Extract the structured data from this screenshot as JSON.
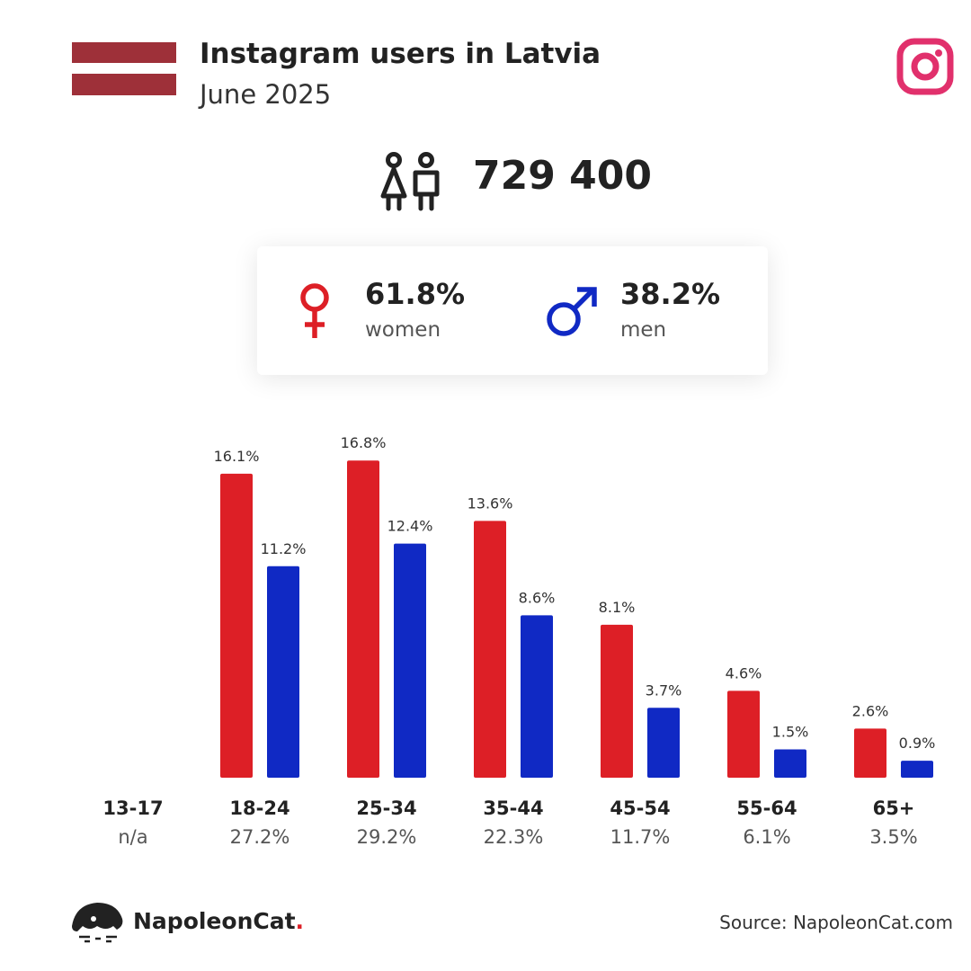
{
  "header": {
    "title": "Instagram users in Latvia",
    "subtitle": "June 2025"
  },
  "colors": {
    "flag_red": "#9e3039",
    "women": "#dd1f26",
    "men": "#1029c4",
    "instagram": "#e1306c"
  },
  "icons": {
    "flag": "latvia-flag-icon",
    "platform": "instagram-icon",
    "users": "users-icon",
    "women": "venus-icon",
    "men": "mars-icon",
    "brand": "napoleoncat-logo-icon"
  },
  "summary": {
    "total_users": "729 400",
    "women_pct": "61.8%",
    "women_label": "women",
    "men_pct": "38.2%",
    "men_label": "men"
  },
  "chart_data": {
    "type": "bar",
    "categories": [
      "13-17",
      "18-24",
      "25-34",
      "35-44",
      "45-54",
      "55-64",
      "65+"
    ],
    "category_totals": [
      "n/a",
      "27.2%",
      "29.2%",
      "22.3%",
      "11.7%",
      "6.1%",
      "3.5%"
    ],
    "series": [
      {
        "key": "women",
        "values": [
          null,
          16.1,
          16.8,
          13.6,
          8.1,
          4.6,
          2.6
        ]
      },
      {
        "key": "men",
        "values": [
          null,
          11.2,
          12.4,
          8.6,
          3.7,
          1.5,
          0.9
        ]
      }
    ],
    "value_unit": "%",
    "grid": false,
    "legend": "none"
  },
  "footer": {
    "brand_name": "NapoleonCat",
    "brand_dot": ".",
    "source": "Source: NapoleonCat.com"
  }
}
